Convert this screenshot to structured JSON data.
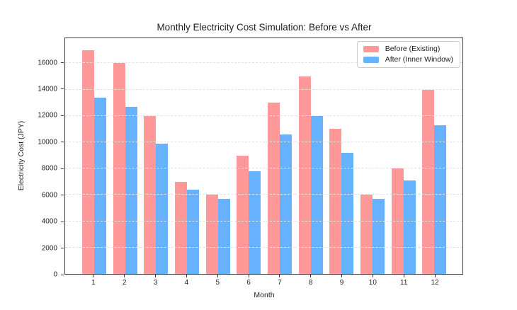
{
  "chart_data": {
    "type": "bar",
    "title": "Monthly Electricity Cost Simulation: Before vs After",
    "xlabel": "Month",
    "ylabel": "Electricity Cost (JPY)",
    "categories": [
      "1",
      "2",
      "3",
      "4",
      "5",
      "6",
      "7",
      "8",
      "9",
      "10",
      "11",
      "12"
    ],
    "series": [
      {
        "name": "Before (Existing)",
        "key": "before",
        "color": "#FF9999",
        "values": [
          17000,
          16000,
          12000,
          7000,
          6000,
          9000,
          13000,
          15000,
          11000,
          6000,
          8000,
          14000
        ]
      },
      {
        "name": "After (Inner Window)",
        "key": "after",
        "color": "#66B2FF",
        "values": [
          13400,
          12700,
          9900,
          6400,
          5700,
          7800,
          10600,
          12000,
          9200,
          5700,
          7100,
          11300
        ]
      }
    ],
    "ylim": [
      0,
      17900
    ],
    "yticks": [
      0,
      2000,
      4000,
      6000,
      8000,
      10000,
      12000,
      14000,
      16000
    ],
    "grid": "horizontal-dashed",
    "legend_position": "upper-right",
    "colors": {
      "grid": "#e2e2e2",
      "spine": "#3b3b3b",
      "text": "#1f1f1f",
      "background": "#ffffff"
    }
  }
}
